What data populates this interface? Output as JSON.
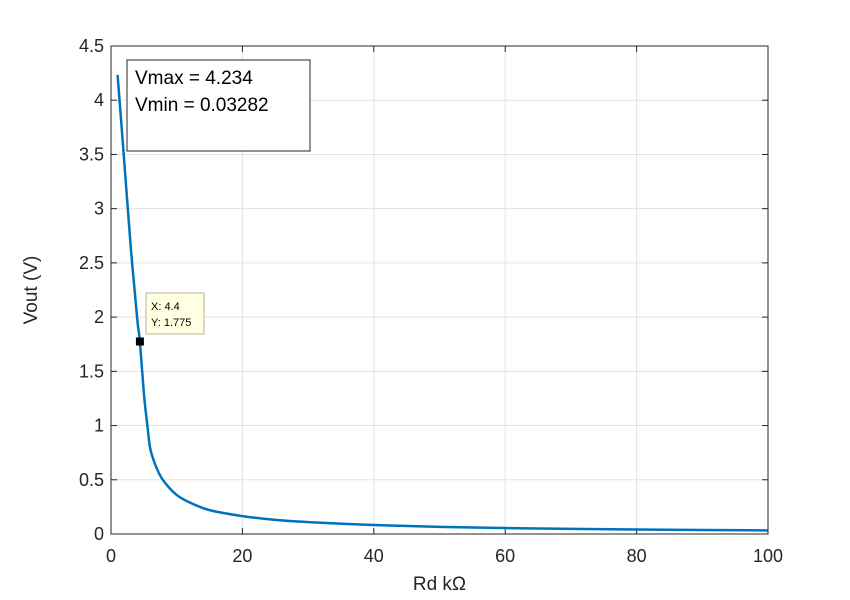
{
  "chart_data": {
    "type": "line",
    "xlabel": "Rd kΩ",
    "ylabel": "Vout (V)",
    "xlim": [
      0,
      100
    ],
    "ylim": [
      0,
      4.5
    ],
    "xticks": [
      0,
      20,
      40,
      60,
      80,
      100
    ],
    "yticks": [
      0,
      0.5,
      1,
      1.5,
      2,
      2.5,
      3,
      3.5,
      4,
      4.5
    ],
    "xtick_labels": [
      "0",
      "20",
      "40",
      "60",
      "80",
      "100"
    ],
    "ytick_labels": [
      "0",
      "0.5",
      "1",
      "1.5",
      "2",
      "2.5",
      "3",
      "3.5",
      "4",
      "4.5"
    ],
    "grid": true,
    "line_color": "#0072BD",
    "series": [
      {
        "x": [
          1,
          2,
          3,
          4,
          4.4,
          5,
          5.5,
          6,
          7,
          8,
          10,
          12,
          15,
          20,
          25,
          30,
          40,
          50,
          60,
          70,
          80,
          90,
          100
        ],
        "values": [
          4.234,
          3.45,
          2.65,
          1.98,
          1.775,
          1.3,
          1.02,
          0.78,
          0.6,
          0.49,
          0.36,
          0.29,
          0.22,
          0.165,
          0.13,
          0.11,
          0.083,
          0.066,
          0.055,
          0.047,
          0.041,
          0.037,
          0.03282
        ]
      }
    ],
    "annotation": {
      "lines": [
        "Vmax = 4.234",
        "Vmin = 0.03282"
      ]
    },
    "datatip": {
      "x": 4.4,
      "y": 1.775,
      "lines": [
        "X: 4.4",
        "Y: 1.775"
      ]
    }
  }
}
